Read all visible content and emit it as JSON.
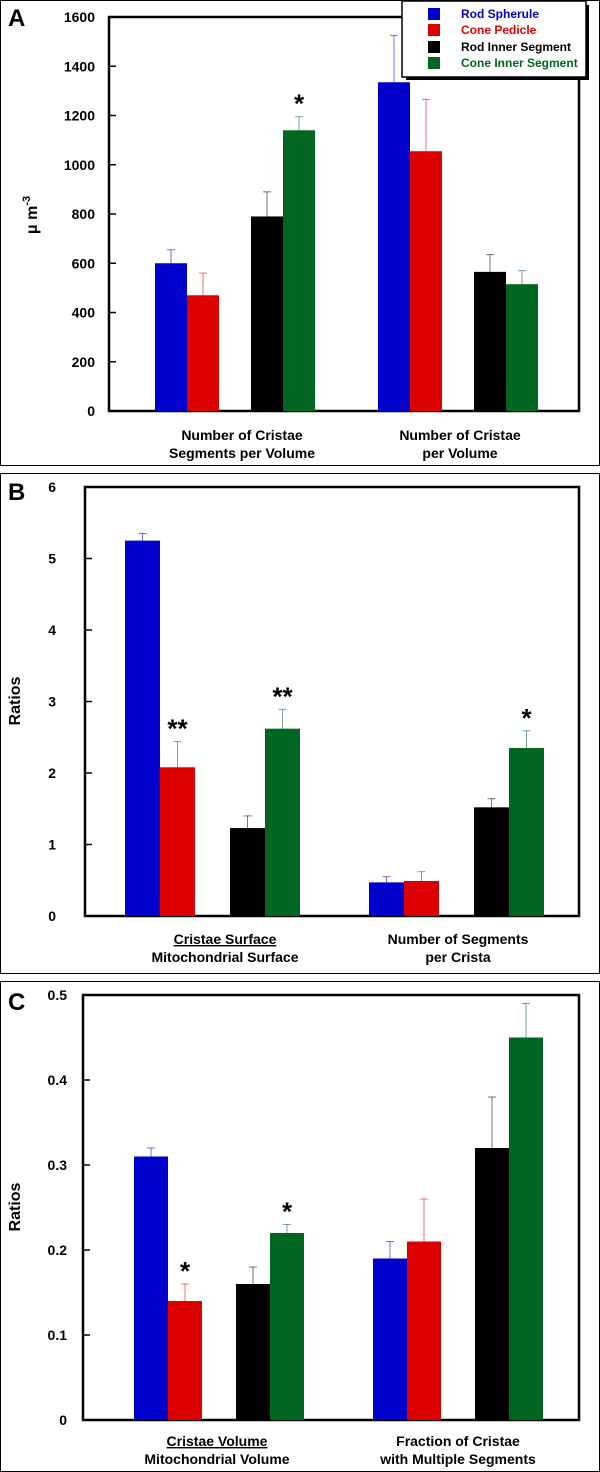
{
  "series_names": [
    "Rod Spherule",
    "Cone Pedicle",
    "Rod Inner Segment",
    "Cone Inner Segment"
  ],
  "colors": {
    "rod_spherule": "#0000cc",
    "cone_pedicle": "#dd0000",
    "rod_inner_segment": "#000000",
    "cone_inner_segment": "#006622"
  },
  "chart_data": [
    {
      "panel": "A",
      "type": "bar",
      "ylabel": "μ m",
      "ylabel_superscript": "-3",
      "ylim": [
        0,
        1600
      ],
      "yticks": [
        0,
        200,
        400,
        600,
        800,
        1000,
        1200,
        1400,
        1600
      ],
      "ytick_labels": [
        "0",
        "200",
        "400",
        "600",
        "800",
        "1000",
        "1200",
        "1400",
        "1600"
      ],
      "legend": "top-right",
      "groups": [
        {
          "label_lines": [
            "Number of Cristae",
            "Segments per Volume"
          ],
          "underline_first": false
        },
        {
          "label_lines": [
            "Number of Cristae",
            "per Volume"
          ],
          "underline_first": false
        }
      ],
      "series": [
        {
          "name": "Rod Spherule",
          "color": "#0000cc",
          "values": [
            600,
            1335
          ],
          "errors": [
            55,
            190
          ]
        },
        {
          "name": "Cone Pedicle",
          "color": "#dd0000",
          "values": [
            470,
            1055
          ],
          "errors": [
            90,
            210
          ]
        },
        {
          "name": "Rod Inner Segment",
          "color": "#000000",
          "values": [
            790,
            565
          ],
          "errors": [
            100,
            70
          ]
        },
        {
          "name": "Cone Inner Segment",
          "color": "#006622",
          "values": [
            1140,
            515
          ],
          "errors": [
            55,
            55
          ]
        }
      ],
      "annotations": [
        {
          "text": "*",
          "group": 0,
          "series": 3
        }
      ]
    },
    {
      "panel": "B",
      "type": "bar",
      "ylabel": "Ratios",
      "ylim": [
        0,
        6
      ],
      "yticks": [
        0,
        1,
        2,
        3,
        4,
        5,
        6
      ],
      "ytick_labels": [
        "0",
        "1",
        "2",
        "3",
        "4",
        "5",
        "6"
      ],
      "groups": [
        {
          "label_lines": [
            "Cristae Surface",
            "Mitochondrial Surface"
          ],
          "underline_first": true
        },
        {
          "label_lines": [
            "Number of Segments",
            "per Crista"
          ],
          "underline_first": false
        }
      ],
      "series": [
        {
          "name": "Rod Spherule",
          "color": "#0000cc",
          "values": [
            5.25,
            0.47
          ],
          "errors": [
            0.1,
            0.08
          ]
        },
        {
          "name": "Cone Pedicle",
          "color": "#dd0000",
          "values": [
            2.08,
            0.49
          ],
          "errors": [
            0.36,
            0.13
          ]
        },
        {
          "name": "Rod Inner Segment",
          "color": "#000000",
          "values": [
            1.23,
            1.52
          ],
          "errors": [
            0.17,
            0.12
          ]
        },
        {
          "name": "Cone Inner Segment",
          "color": "#006622",
          "values": [
            2.62,
            2.35
          ],
          "errors": [
            0.27,
            0.24
          ]
        }
      ],
      "annotations": [
        {
          "text": "**",
          "group": 0,
          "series": 1
        },
        {
          "text": "**",
          "group": 0,
          "series": 3
        },
        {
          "text": "*",
          "group": 1,
          "series": 3
        }
      ]
    },
    {
      "panel": "C",
      "type": "bar",
      "ylabel": "Ratios",
      "ylim": [
        0,
        0.5
      ],
      "yticks": [
        0,
        0.1,
        0.2,
        0.3,
        0.4,
        0.5
      ],
      "ytick_labels": [
        "0",
        "0.1",
        "0.2",
        "0.3",
        "0.4",
        "0.5"
      ],
      "groups": [
        {
          "label_lines": [
            "Cristae Volume",
            "Mitochondrial Volume"
          ],
          "underline_first": true
        },
        {
          "label_lines": [
            "Fraction of Cristae",
            "with Multiple Segments"
          ],
          "underline_first": false
        }
      ],
      "series": [
        {
          "name": "Rod Spherule",
          "color": "#0000cc",
          "values": [
            0.31,
            0.19
          ],
          "errors": [
            0.01,
            0.02
          ]
        },
        {
          "name": "Cone Pedicle",
          "color": "#dd0000",
          "values": [
            0.14,
            0.21
          ],
          "errors": [
            0.02,
            0.05
          ]
        },
        {
          "name": "Rod Inner Segment",
          "color": "#000000",
          "values": [
            0.16,
            0.32
          ],
          "errors": [
            0.02,
            0.06
          ]
        },
        {
          "name": "Cone Inner Segment",
          "color": "#006622",
          "values": [
            0.22,
            0.45
          ],
          "errors": [
            0.01,
            0.04
          ]
        }
      ],
      "annotations": [
        {
          "text": "*",
          "group": 0,
          "series": 1
        },
        {
          "text": "*",
          "group": 0,
          "series": 3
        }
      ]
    }
  ]
}
